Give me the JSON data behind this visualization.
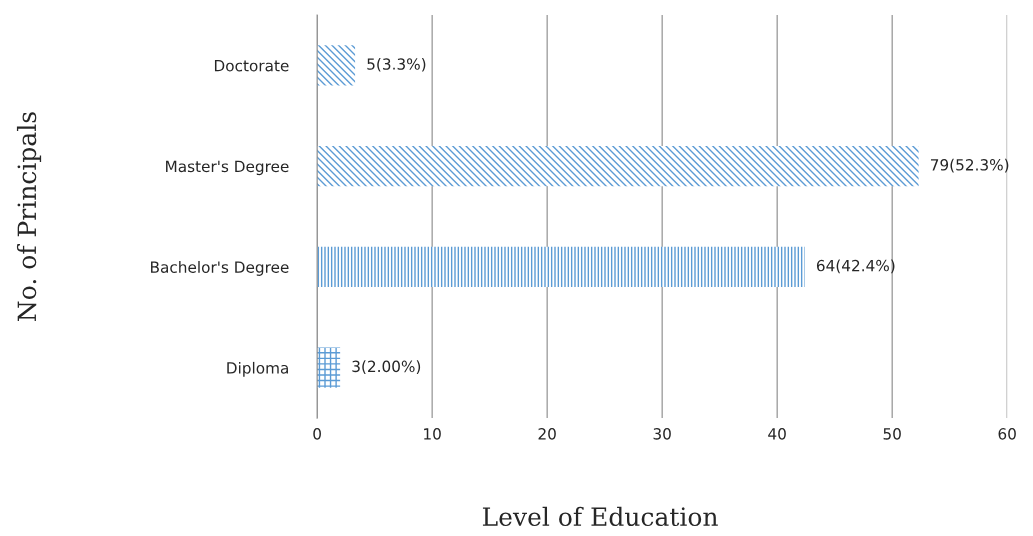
{
  "chart_data": {
    "type": "bar",
    "orientation": "horizontal",
    "categories": [
      "Doctorate",
      "Master's Degree",
      "Bachelor's Degree",
      "Diploma"
    ],
    "values": [
      3.3,
      52.3,
      42.4,
      2.0
    ],
    "value_labels": [
      "5(3.3%)",
      "79(52.3%)",
      "64(42.4%)",
      "3(2.00%)"
    ],
    "color": "#5b9bd5",
    "xlim": [
      0,
      60
    ],
    "xticks": [
      0,
      10,
      20,
      30,
      40,
      50,
      60
    ],
    "grid": "x",
    "xlabel": "Level of Education",
    "ylabel": "No. of Principals"
  }
}
